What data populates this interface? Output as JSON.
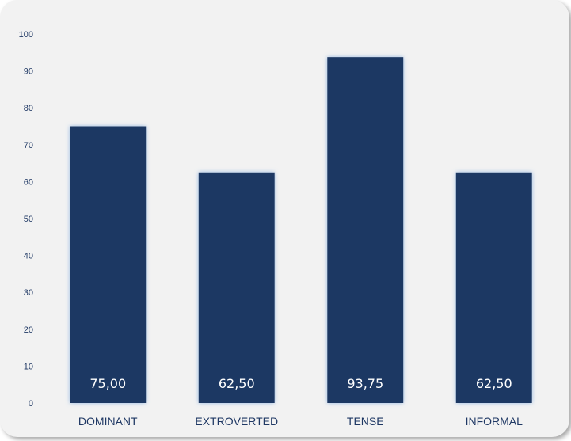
{
  "chart_data": {
    "type": "bar",
    "categories": [
      "DOMINANT",
      "EXTROVERTED",
      "TENSE",
      "INFORMAL"
    ],
    "values": [
      75.0,
      62.5,
      93.75,
      62.5
    ],
    "data_labels": [
      "75,00",
      "62,50",
      "93,75",
      "62,50"
    ],
    "yticks": [
      "0",
      "10",
      "20",
      "30",
      "40",
      "50",
      "60",
      "70",
      "80",
      "90",
      "100"
    ],
    "ylim": [
      0,
      100
    ],
    "title": "",
    "xlabel": "",
    "ylabel": "",
    "grid": false,
    "legend": "none",
    "colors": {
      "bar": "#1f3864",
      "bar_glow": "#8db3e2",
      "label_text": "#1f3864",
      "data_label_text": "#ffffff",
      "background": "#f2f2f2"
    }
  }
}
